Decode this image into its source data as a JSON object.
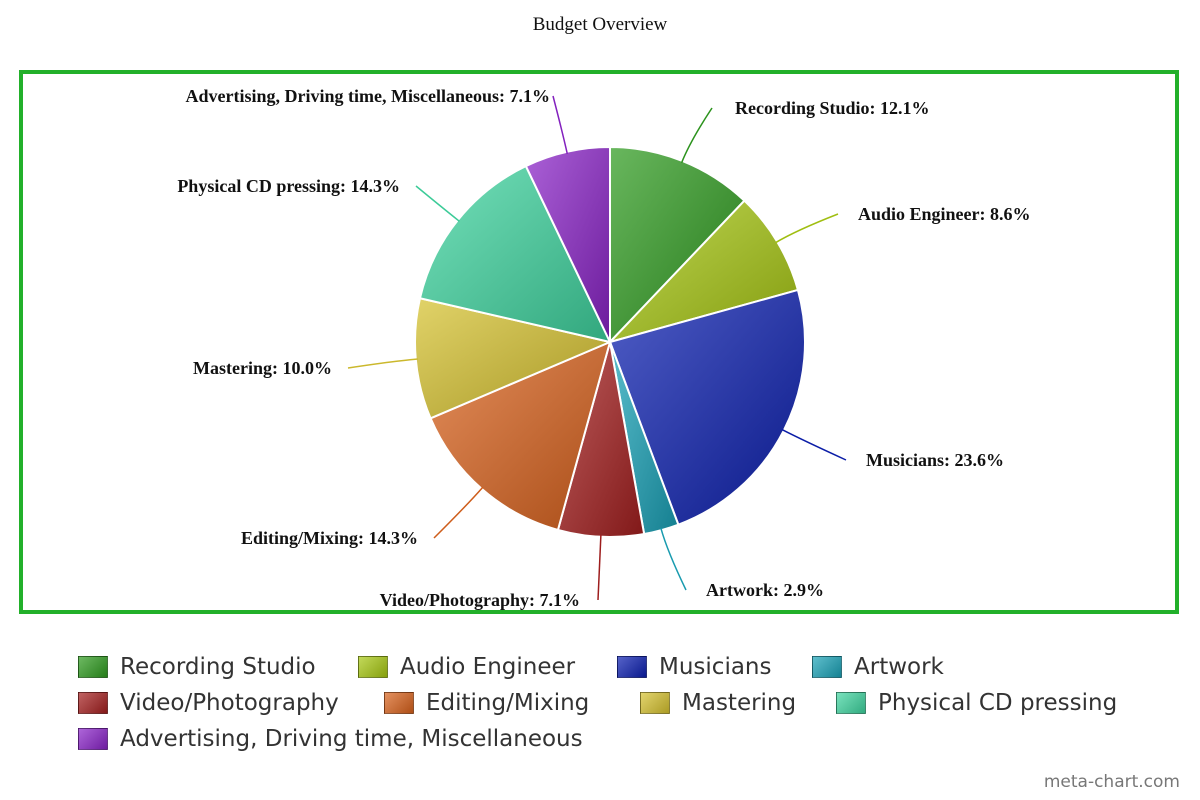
{
  "chart_data": {
    "type": "pie",
    "title": "Budget Overview",
    "slices": [
      {
        "label": "Recording Studio",
        "value": 12.1,
        "pct_label": "12.1%",
        "color": "#2e9b1f"
      },
      {
        "label": "Audio Engineer",
        "value": 8.6,
        "pct_label": "8.6%",
        "color": "#a8c812"
      },
      {
        "label": "Musicians",
        "value": 23.6,
        "pct_label": "23.6%",
        "color": "#0c1fb0"
      },
      {
        "label": "Artwork",
        "value": 2.9,
        "pct_label": "2.9%",
        "color": "#1aa3b8"
      },
      {
        "label": "Video/Photography",
        "value": 7.1,
        "pct_label": "7.1%",
        "color": "#a51f1f"
      },
      {
        "label": "Editing/Mixing",
        "value": 14.3,
        "pct_label": "14.3%",
        "color": "#d9621c"
      },
      {
        "label": "Mastering",
        "value": 10.0,
        "pct_label": "10.0%",
        "color": "#d6c22e"
      },
      {
        "label": "Physical CD pressing",
        "value": 14.3,
        "pct_label": "14.3%",
        "color": "#3fd6a0"
      },
      {
        "label": "Advertising, Driving time, Miscellaneous",
        "value": 7.1,
        "pct_label": "7.1%",
        "color": "#8a23c8"
      }
    ],
    "legend_position": "bottom"
  },
  "watermark": "meta-chart.com"
}
